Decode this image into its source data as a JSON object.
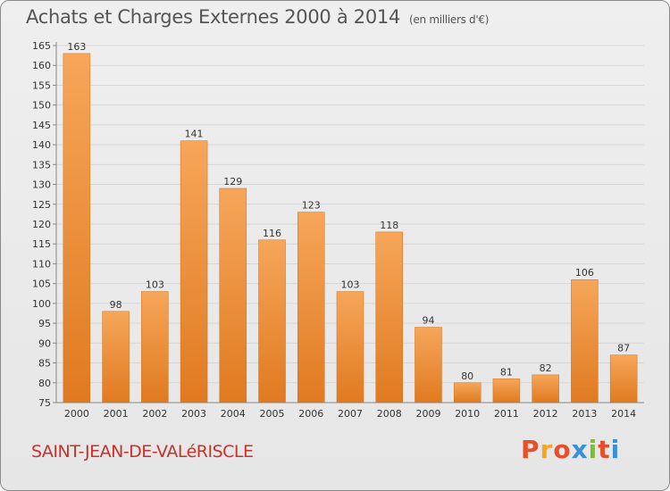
{
  "header": {
    "title": "Achats et Charges Externes 2000 à 2014",
    "unit": "(en milliers d'€)"
  },
  "footer": {
    "commune": "SAINT-JEAN-DE-VALéRISCLE",
    "logo_text": "Proxiti",
    "logo_colors": [
      "#e94e2a",
      "#f5a623",
      "#e94e2a",
      "#3a8fd8",
      "#7bbf2a",
      "#e94e2a",
      "#3a8fd8"
    ]
  },
  "chart_data": {
    "type": "bar",
    "title": "Achats et Charges Externes 2000 à 2014",
    "subtitle": "(en milliers d'€)",
    "categories": [
      "2000",
      "2001",
      "2002",
      "2003",
      "2004",
      "2005",
      "2006",
      "2007",
      "2008",
      "2009",
      "2010",
      "2011",
      "2012",
      "2013",
      "2014"
    ],
    "values": [
      163,
      98,
      103,
      141,
      129,
      116,
      123,
      103,
      118,
      94,
      80,
      81,
      82,
      106,
      87
    ],
    "ylim": [
      75,
      165
    ],
    "yticks": [
      75,
      80,
      85,
      90,
      95,
      100,
      105,
      110,
      115,
      120,
      125,
      130,
      135,
      140,
      145,
      150,
      155,
      160,
      165
    ],
    "grid": true,
    "bar_color_top": "#f6a65a",
    "bar_color_bottom": "#e07a20"
  }
}
